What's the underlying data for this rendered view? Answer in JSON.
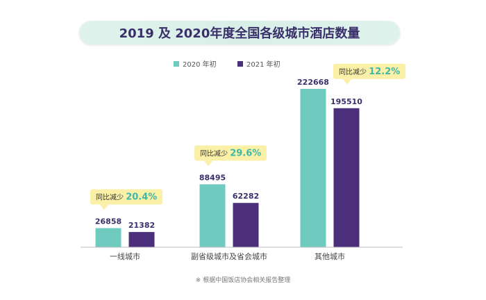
{
  "chart_data": {
    "type": "bar",
    "title": "2019 及 2020年度全国各级城市酒店数量",
    "categories": [
      "一线城市",
      "副省级城市及省会城市",
      "其他城市"
    ],
    "series": [
      {
        "name": "2020 年初",
        "color": "#6fcac0",
        "values": [
          26858,
          88495,
          222668
        ]
      },
      {
        "name": "2021 年初",
        "color": "#4b2f7a",
        "values": [
          21382,
          62282,
          195510
        ]
      }
    ],
    "annotations": [
      {
        "label": "同比减少",
        "value": "20.4%"
      },
      {
        "label": "同比减少",
        "value": "29.6%"
      },
      {
        "label": "同比减少",
        "value": "12.2%"
      }
    ],
    "ylim": [
      0,
      222668
    ],
    "xlabel": "",
    "ylabel": "",
    "legend": "top-center",
    "grid": false
  },
  "source_note": "※ 根据中国饭店协会相关报告整理",
  "colors": {
    "bubble": "#fbf0a8",
    "accent_text": "#3fb8a8",
    "label_text": "#3a2f6b"
  }
}
